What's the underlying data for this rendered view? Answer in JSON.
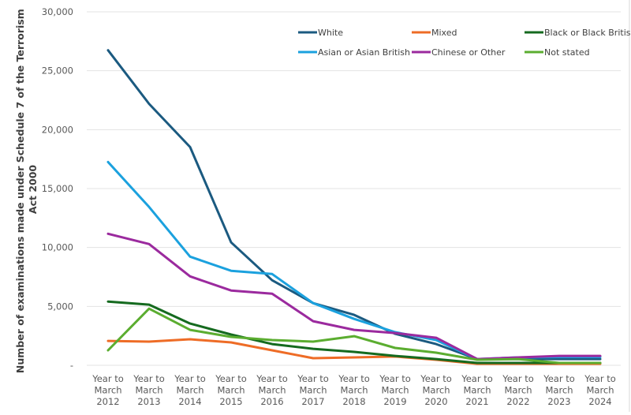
{
  "chart_data": {
    "type": "line",
    "title": "",
    "xlabel": "",
    "ylabel": "Number of examinations made under Schedule 7 of the Terrorism Act 2000",
    "ylim": [
      0,
      30000
    ],
    "yticks": [
      "-",
      "5,000",
      "10,000",
      "15,000",
      "20,000",
      "25,000",
      "30,000"
    ],
    "ytick_values": [
      0,
      5000,
      10000,
      15000,
      20000,
      25000,
      30000
    ],
    "grid": true,
    "legend_position": "top-right",
    "categories": [
      [
        "Year to",
        "March",
        "2012"
      ],
      [
        "Year to",
        "March",
        "2013"
      ],
      [
        "Year to",
        "March",
        "2014"
      ],
      [
        "Year to",
        "March",
        "2015"
      ],
      [
        "Year to",
        "March",
        "2016"
      ],
      [
        "Year to",
        "March",
        "2017"
      ],
      [
        "Year to",
        "March",
        "2018"
      ],
      [
        "Year to",
        "March",
        "2019"
      ],
      [
        "Year to",
        "March",
        "2020"
      ],
      [
        "Year to",
        "March",
        "2021"
      ],
      [
        "Year to",
        "March",
        "2022"
      ],
      [
        "Year to",
        "March",
        "2023"
      ],
      [
        "Year to",
        "March",
        "2024"
      ]
    ],
    "series": [
      {
        "name": "White",
        "color": "#1b5a80",
        "values": [
          26740,
          22190,
          18520,
          10430,
          7220,
          5280,
          4280,
          2670,
          1800,
          530,
          530,
          530,
          530
        ]
      },
      {
        "name": "Mixed",
        "color": "#ee6c26",
        "values": [
          2070,
          2010,
          2210,
          1940,
          1270,
          600,
          670,
          740,
          470,
          130,
          130,
          130,
          130
        ]
      },
      {
        "name": "Black or Black British",
        "color": "#156a1f",
        "values": [
          5410,
          5150,
          3540,
          2610,
          1800,
          1400,
          1140,
          800,
          530,
          200,
          200,
          200,
          200
        ]
      },
      {
        "name": "Asian or Asian British",
        "color": "#1ba1de",
        "values": [
          17250,
          13440,
          9220,
          8020,
          7750,
          5280,
          3940,
          2810,
          2140,
          530,
          670,
          700,
          700
        ]
      },
      {
        "name": "Chinese or Other",
        "color": "#9b2a9e",
        "values": [
          11160,
          10290,
          7550,
          6350,
          6080,
          3740,
          3010,
          2740,
          2340,
          530,
          670,
          800,
          800
        ]
      },
      {
        "name": "Not stated",
        "color": "#5bad30",
        "values": [
          1270,
          4810,
          3010,
          2410,
          2140,
          2010,
          2470,
          1470,
          1070,
          470,
          530,
          200,
          200
        ]
      }
    ]
  }
}
